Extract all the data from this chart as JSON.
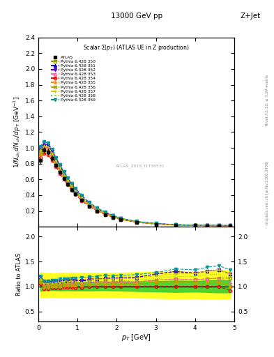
{
  "title_top": "13000 GeV pp",
  "title_right": "Z+Jet",
  "plot_title": "Scalar Σ(p_T) (ATLAS UE in Z production)",
  "ylabel_main": "1/N_{ch} dN_{ch}/dp_{T} [GeV]",
  "ylabel_ratio": "Ratio to ATLAS",
  "xlabel": "p_T [GeV]",
  "watermark": "ATLAS_2019_I1736531",
  "side_text_top": "Rivet 3.1.10, ≥ 3.3M events",
  "side_text_bottom": "mcplots.cern.ch [arXiv:1306.3436]",
  "xlim": [
    0,
    5.0
  ],
  "ylim_main": [
    0,
    2.4
  ],
  "ylim_ratio": [
    0.3,
    2.2
  ],
  "yticks_main": [
    0.2,
    0.4,
    0.6,
    0.8,
    1.0,
    1.2,
    1.4,
    1.6,
    1.8,
    2.0,
    2.2,
    2.4
  ],
  "yticks_ratio": [
    0.5,
    1.0,
    1.5,
    2.0
  ],
  "xticks": [
    0,
    1,
    2,
    3,
    4,
    5
  ],
  "pt_values": [
    0.05,
    0.15,
    0.25,
    0.35,
    0.45,
    0.55,
    0.65,
    0.75,
    0.85,
    0.95,
    1.1,
    1.3,
    1.5,
    1.7,
    1.9,
    2.1,
    2.5,
    3.0,
    3.5,
    4.0,
    4.3,
    4.6,
    4.9
  ],
  "atlas_data": [
    0.84,
    0.97,
    0.95,
    0.87,
    0.78,
    0.69,
    0.61,
    0.54,
    0.47,
    0.42,
    0.34,
    0.26,
    0.2,
    0.155,
    0.12,
    0.09,
    0.055,
    0.032,
    0.02,
    0.015,
    0.013,
    0.012,
    0.012
  ],
  "atlas_err_lo": [
    0.04,
    0.04,
    0.04,
    0.03,
    0.03,
    0.03,
    0.025,
    0.02,
    0.02,
    0.018,
    0.014,
    0.011,
    0.008,
    0.006,
    0.005,
    0.004,
    0.003,
    0.002,
    0.0015,
    0.001,
    0.001,
    0.001,
    0.001
  ],
  "atlas_err_hi": [
    0.04,
    0.04,
    0.04,
    0.03,
    0.03,
    0.03,
    0.025,
    0.02,
    0.02,
    0.018,
    0.014,
    0.011,
    0.008,
    0.006,
    0.005,
    0.004,
    0.003,
    0.002,
    0.0015,
    0.001,
    0.001,
    0.001,
    0.001
  ],
  "atlas_band_lo": [
    0.8,
    0.93,
    0.91,
    0.84,
    0.75,
    0.66,
    0.585,
    0.52,
    0.45,
    0.402,
    0.326,
    0.249,
    0.192,
    0.149,
    0.115,
    0.086,
    0.052,
    0.03,
    0.0185,
    0.014,
    0.012,
    0.011,
    0.011
  ],
  "atlas_band_hi": [
    0.88,
    1.01,
    0.99,
    0.9,
    0.81,
    0.72,
    0.635,
    0.56,
    0.49,
    0.438,
    0.354,
    0.271,
    0.208,
    0.161,
    0.125,
    0.094,
    0.058,
    0.034,
    0.0215,
    0.016,
    0.014,
    0.013,
    0.013
  ],
  "series": [
    {
      "label": "Pythia 6.428 350",
      "color": "#999900",
      "linestyle": "--",
      "marker": "s",
      "fillstyle": "none",
      "data": [
        0.96,
        1.0,
        0.98,
        0.91,
        0.82,
        0.73,
        0.65,
        0.57,
        0.5,
        0.44,
        0.36,
        0.28,
        0.22,
        0.17,
        0.13,
        0.1,
        0.06,
        0.036,
        0.023,
        0.017,
        0.015,
        0.014,
        0.014
      ]
    },
    {
      "label": "Pythia 6.428 351",
      "color": "#0000cc",
      "linestyle": "--",
      "marker": "^",
      "fillstyle": "full",
      "data": [
        0.99,
        1.05,
        1.03,
        0.95,
        0.86,
        0.76,
        0.68,
        0.6,
        0.53,
        0.47,
        0.38,
        0.29,
        0.23,
        0.18,
        0.14,
        0.105,
        0.065,
        0.04,
        0.026,
        0.019,
        0.017,
        0.016,
        0.015
      ]
    },
    {
      "label": "Pythia 6.428 352",
      "color": "#6600bb",
      "linestyle": "--",
      "marker": "v",
      "fillstyle": "full",
      "data": [
        1.0,
        1.06,
        1.04,
        0.96,
        0.87,
        0.77,
        0.69,
        0.61,
        0.53,
        0.47,
        0.38,
        0.3,
        0.23,
        0.18,
        0.14,
        0.105,
        0.065,
        0.04,
        0.026,
        0.019,
        0.017,
        0.016,
        0.015
      ]
    },
    {
      "label": "Pythia 6.428 353",
      "color": "#ff66aa",
      "linestyle": "--",
      "marker": "^",
      "fillstyle": "none",
      "data": [
        0.95,
        1.01,
        0.99,
        0.91,
        0.82,
        0.73,
        0.65,
        0.57,
        0.5,
        0.44,
        0.36,
        0.28,
        0.22,
        0.17,
        0.13,
        0.098,
        0.06,
        0.036,
        0.023,
        0.017,
        0.015,
        0.014,
        0.013
      ]
    },
    {
      "label": "Pythia 6.428 354",
      "color": "#ff0000",
      "linestyle": "--",
      "marker": "o",
      "fillstyle": "none",
      "data": [
        0.88,
        0.93,
        0.91,
        0.84,
        0.76,
        0.67,
        0.6,
        0.53,
        0.46,
        0.41,
        0.33,
        0.26,
        0.2,
        0.155,
        0.12,
        0.09,
        0.055,
        0.032,
        0.02,
        0.015,
        0.013,
        0.012,
        0.011
      ]
    },
    {
      "label": "Pythia 6.428 355",
      "color": "#ff8800",
      "linestyle": "--",
      "marker": "*",
      "fillstyle": "full",
      "data": [
        0.91,
        0.96,
        0.94,
        0.87,
        0.79,
        0.7,
        0.62,
        0.55,
        0.48,
        0.43,
        0.35,
        0.27,
        0.21,
        0.163,
        0.126,
        0.095,
        0.058,
        0.035,
        0.022,
        0.016,
        0.014,
        0.013,
        0.012
      ]
    },
    {
      "label": "Pythia 6.428 356",
      "color": "#aaaa00",
      "linestyle": "--",
      "marker": "s",
      "fillstyle": "none",
      "data": [
        0.92,
        0.97,
        0.95,
        0.88,
        0.79,
        0.7,
        0.63,
        0.55,
        0.48,
        0.43,
        0.35,
        0.27,
        0.21,
        0.163,
        0.126,
        0.095,
        0.058,
        0.035,
        0.022,
        0.016,
        0.014,
        0.013,
        0.012
      ]
    },
    {
      "label": "Pythia 6.428 357",
      "color": "#cccc00",
      "linestyle": "--",
      "marker": "+",
      "fillstyle": "none",
      "data": [
        0.97,
        1.03,
        1.01,
        0.93,
        0.84,
        0.75,
        0.67,
        0.59,
        0.52,
        0.46,
        0.37,
        0.29,
        0.23,
        0.178,
        0.138,
        0.104,
        0.064,
        0.039,
        0.025,
        0.019,
        0.017,
        0.016,
        0.015
      ]
    },
    {
      "label": "Pythia 6.428 358",
      "color": "#88cc00",
      "linestyle": ":",
      "marker": "None",
      "fillstyle": "none",
      "data": [
        0.96,
        1.02,
        1.0,
        0.92,
        0.83,
        0.74,
        0.66,
        0.58,
        0.51,
        0.45,
        0.37,
        0.29,
        0.22,
        0.172,
        0.133,
        0.1,
        0.062,
        0.037,
        0.024,
        0.018,
        0.016,
        0.015,
        0.014
      ]
    },
    {
      "label": "Pythia 6.428 359",
      "color": "#009999",
      "linestyle": "--",
      "marker": "v",
      "fillstyle": "full",
      "data": [
        1.02,
        1.08,
        1.06,
        0.98,
        0.88,
        0.79,
        0.7,
        0.62,
        0.55,
        0.49,
        0.4,
        0.31,
        0.24,
        0.19,
        0.145,
        0.11,
        0.068,
        0.041,
        0.027,
        0.02,
        0.018,
        0.017,
        0.016
      ]
    }
  ]
}
